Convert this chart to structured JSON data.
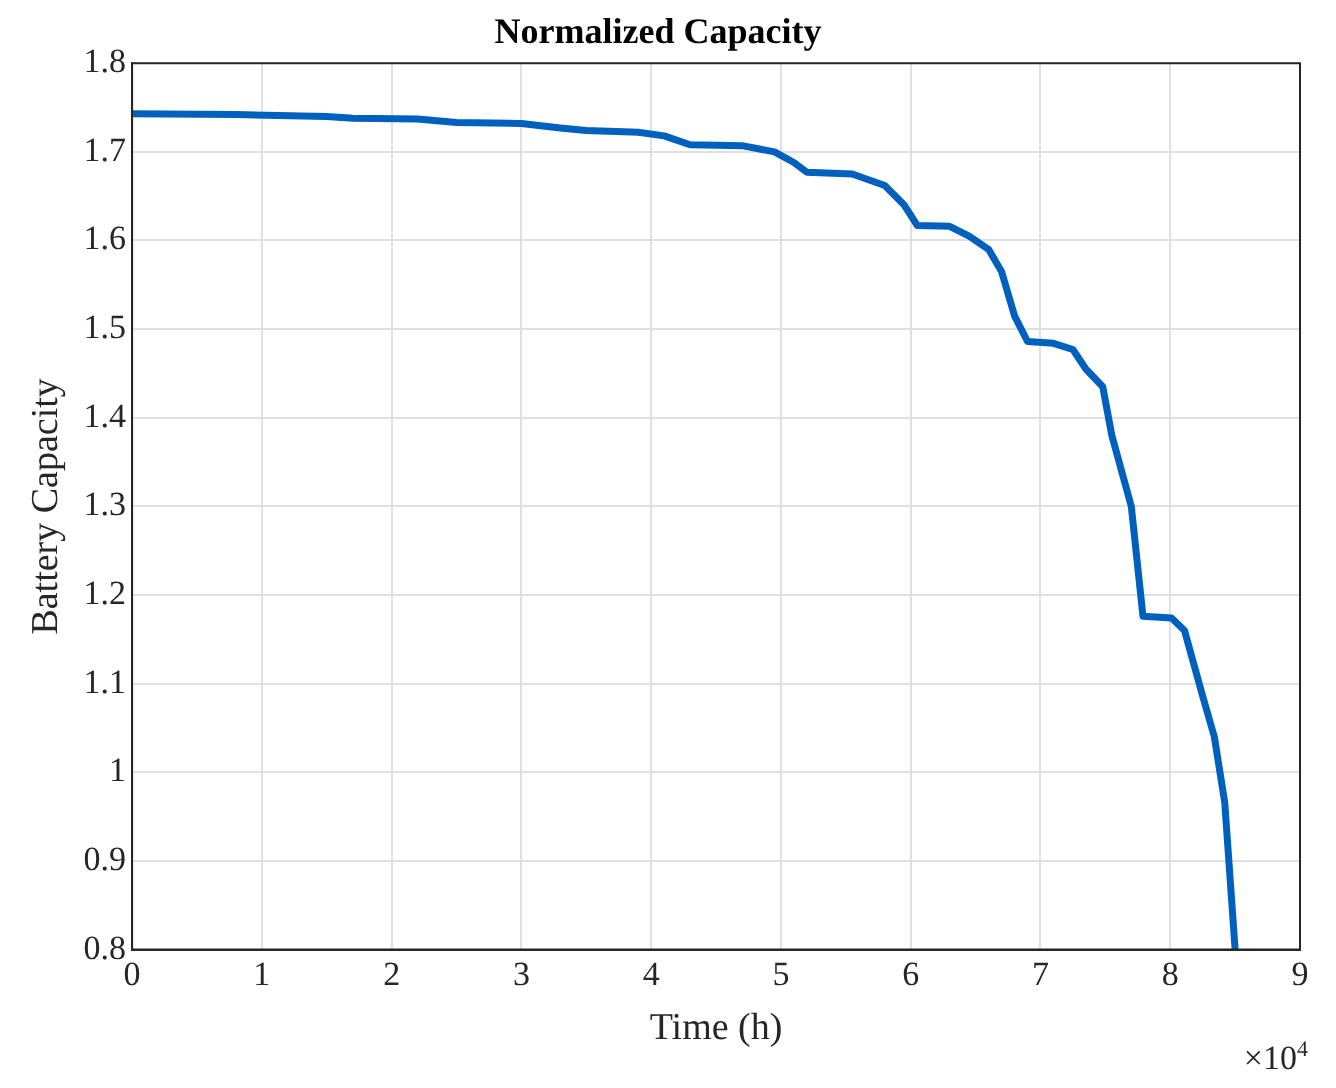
{
  "chart_data": {
    "type": "line",
    "title": "Normalized Capacity",
    "xlabel": "Time (h)",
    "ylabel": "Battery Capacity",
    "annotations": [
      "×10$^{4}$"
    ],
    "x": [
      0,
      0.8,
      1.5,
      1.7,
      2.2,
      2.5,
      3.0,
      3.3,
      3.5,
      3.9,
      4.1,
      4.3,
      4.7,
      4.95,
      5.1,
      5.2,
      5.55,
      5.8,
      5.95,
      6.05,
      6.3,
      6.45,
      6.6,
      6.7,
      6.8,
      6.9,
      7.1,
      7.25,
      7.35,
      7.48,
      7.55,
      7.7,
      7.79,
      8.01,
      8.11,
      8.25,
      8.34,
      8.42,
      8.5
    ],
    "series": [
      {
        "color": "#0060bd",
        "values": [
          1.743,
          1.742,
          1.74,
          1.738,
          1.737,
          1.733,
          1.732,
          1.727,
          1.724,
          1.722,
          1.718,
          1.708,
          1.707,
          1.7,
          1.688,
          1.677,
          1.675,
          1.662,
          1.64,
          1.617,
          1.616,
          1.605,
          1.59,
          1.565,
          1.515,
          1.486,
          1.484,
          1.477,
          1.455,
          1.435,
          1.38,
          1.3,
          1.176,
          1.174,
          1.16,
          1.086,
          1.04,
          0.966,
          0.8
        ]
      }
    ],
    "xlim": [
      0,
      9
    ],
    "xticks": [
      0,
      1,
      2,
      3,
      4,
      5,
      6,
      7,
      8,
      9
    ],
    "ylim": [
      0.8,
      1.8
    ],
    "yticks": [
      0.8,
      0.9,
      1,
      1.1,
      1.2,
      1.3,
      1.4,
      1.5,
      1.6,
      1.7,
      1.8
    ],
    "grid": true,
    "marker": "none",
    "line_style": "solid"
  }
}
